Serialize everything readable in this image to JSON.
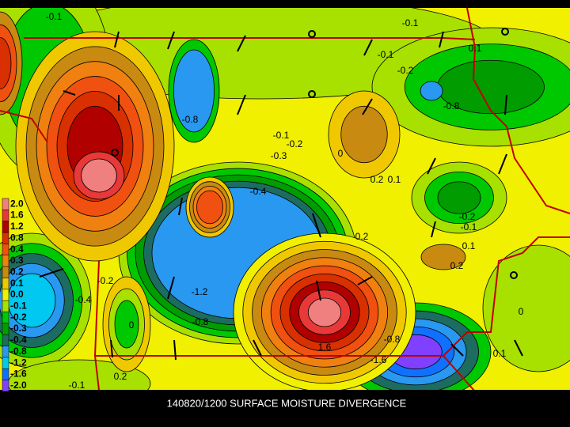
{
  "title": "140820/1200 SURFACE MOISTURE DIVERGENCE",
  "legend": {
    "levels": [
      {
        "label": "2.0",
        "color": "#f08080"
      },
      {
        "label": "1.6",
        "color": "#e83838"
      },
      {
        "label": "1.2",
        "color": "#b00000"
      },
      {
        "label": "0.8",
        "color": "#d83000"
      },
      {
        "label": "0.4",
        "color": "#f05010"
      },
      {
        "label": "0.3",
        "color": "#f08010"
      },
      {
        "label": "0.2",
        "color": "#c88a10"
      },
      {
        "label": "0.1",
        "color": "#f0c800"
      },
      {
        "label": "0.0",
        "color": "#f0f000"
      },
      {
        "label": "-0.1",
        "color": "#a8e000"
      },
      {
        "label": "-0.2",
        "color": "#00c800"
      },
      {
        "label": "-0.3",
        "color": "#009c00"
      },
      {
        "label": "-0.4",
        "color": "#1c6c60"
      },
      {
        "label": "-0.8",
        "color": "#2898f0"
      },
      {
        "label": "-1.2",
        "color": "#00c8f0"
      },
      {
        "label": "-1.6",
        "color": "#1070ff"
      },
      {
        "label": "-2.0",
        "color": "#8040ff"
      }
    ]
  },
  "contour_labels": [
    "-0.1",
    "-0.1",
    "-0.1",
    "-0.2",
    "-0.8",
    "-0.8",
    "-0.1",
    "-0.2",
    "-0.3",
    "0",
    "0.2",
    "0.1",
    "-0.4",
    "-0.2",
    "-0.1",
    "0.1",
    "0.2",
    "0.2",
    "-1.2",
    "-0.8",
    "0",
    "-0.2",
    "-0.4",
    "0",
    "0.1",
    "0.2",
    "-0.1",
    "-1.6",
    "-0.8",
    "1.6",
    "0.1"
  ]
}
